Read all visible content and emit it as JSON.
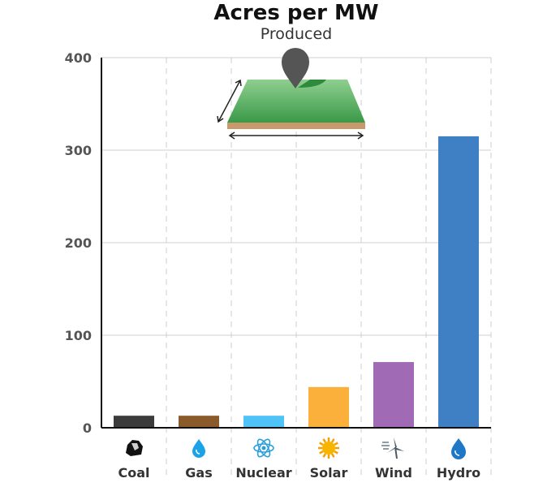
{
  "chart_data": {
    "type": "bar",
    "title": "Acres per MW",
    "subtitle": "Produced",
    "xlabel": "",
    "ylabel": "",
    "ylim": [
      0,
      400
    ],
    "yticks": [
      0,
      100,
      200,
      300,
      400
    ],
    "grid": "horizontal solid, vertical dashed",
    "categories": [
      "Coal",
      "Gas",
      "Nuclear",
      "Solar",
      "Wind",
      "Hydro"
    ],
    "values": [
      13,
      13,
      13,
      44,
      71,
      315
    ],
    "colors": [
      "#3b3b3b",
      "#8b5a2b",
      "#4fc3f7",
      "#fbb03b",
      "#a06ab4",
      "#3f7fc4"
    ],
    "icons": [
      "coal-icon",
      "gas-drop-icon",
      "atom-icon",
      "sun-icon",
      "wind-turbine-icon",
      "water-drop-icon"
    ],
    "illustration": "land-plot-with-location-pin-icon"
  }
}
